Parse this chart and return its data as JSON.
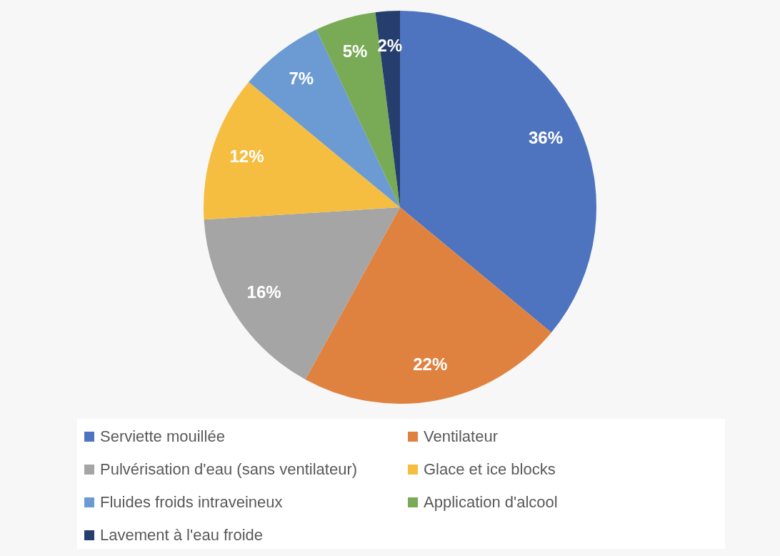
{
  "chart_data": {
    "type": "pie",
    "categories": [
      "Serviette mouillée",
      "Ventilateur",
      "Pulvérisation d'eau (sans ventilateur)",
      "Glace et ice blocks",
      "Fluides froids intraveineux",
      "Application d'alcool",
      "Lavement à l'eau froide"
    ],
    "values": [
      36,
      22,
      16,
      12,
      7,
      5,
      2
    ],
    "colors": [
      "#4e74bf",
      "#e0823f",
      "#a5a5a5",
      "#f5be41",
      "#6b9bd2",
      "#79aa56",
      "#263e6e"
    ],
    "value_labels": [
      "36%",
      "22%",
      "16%",
      "12%",
      "7%",
      "5%",
      "2%"
    ],
    "legend": "bottom"
  }
}
